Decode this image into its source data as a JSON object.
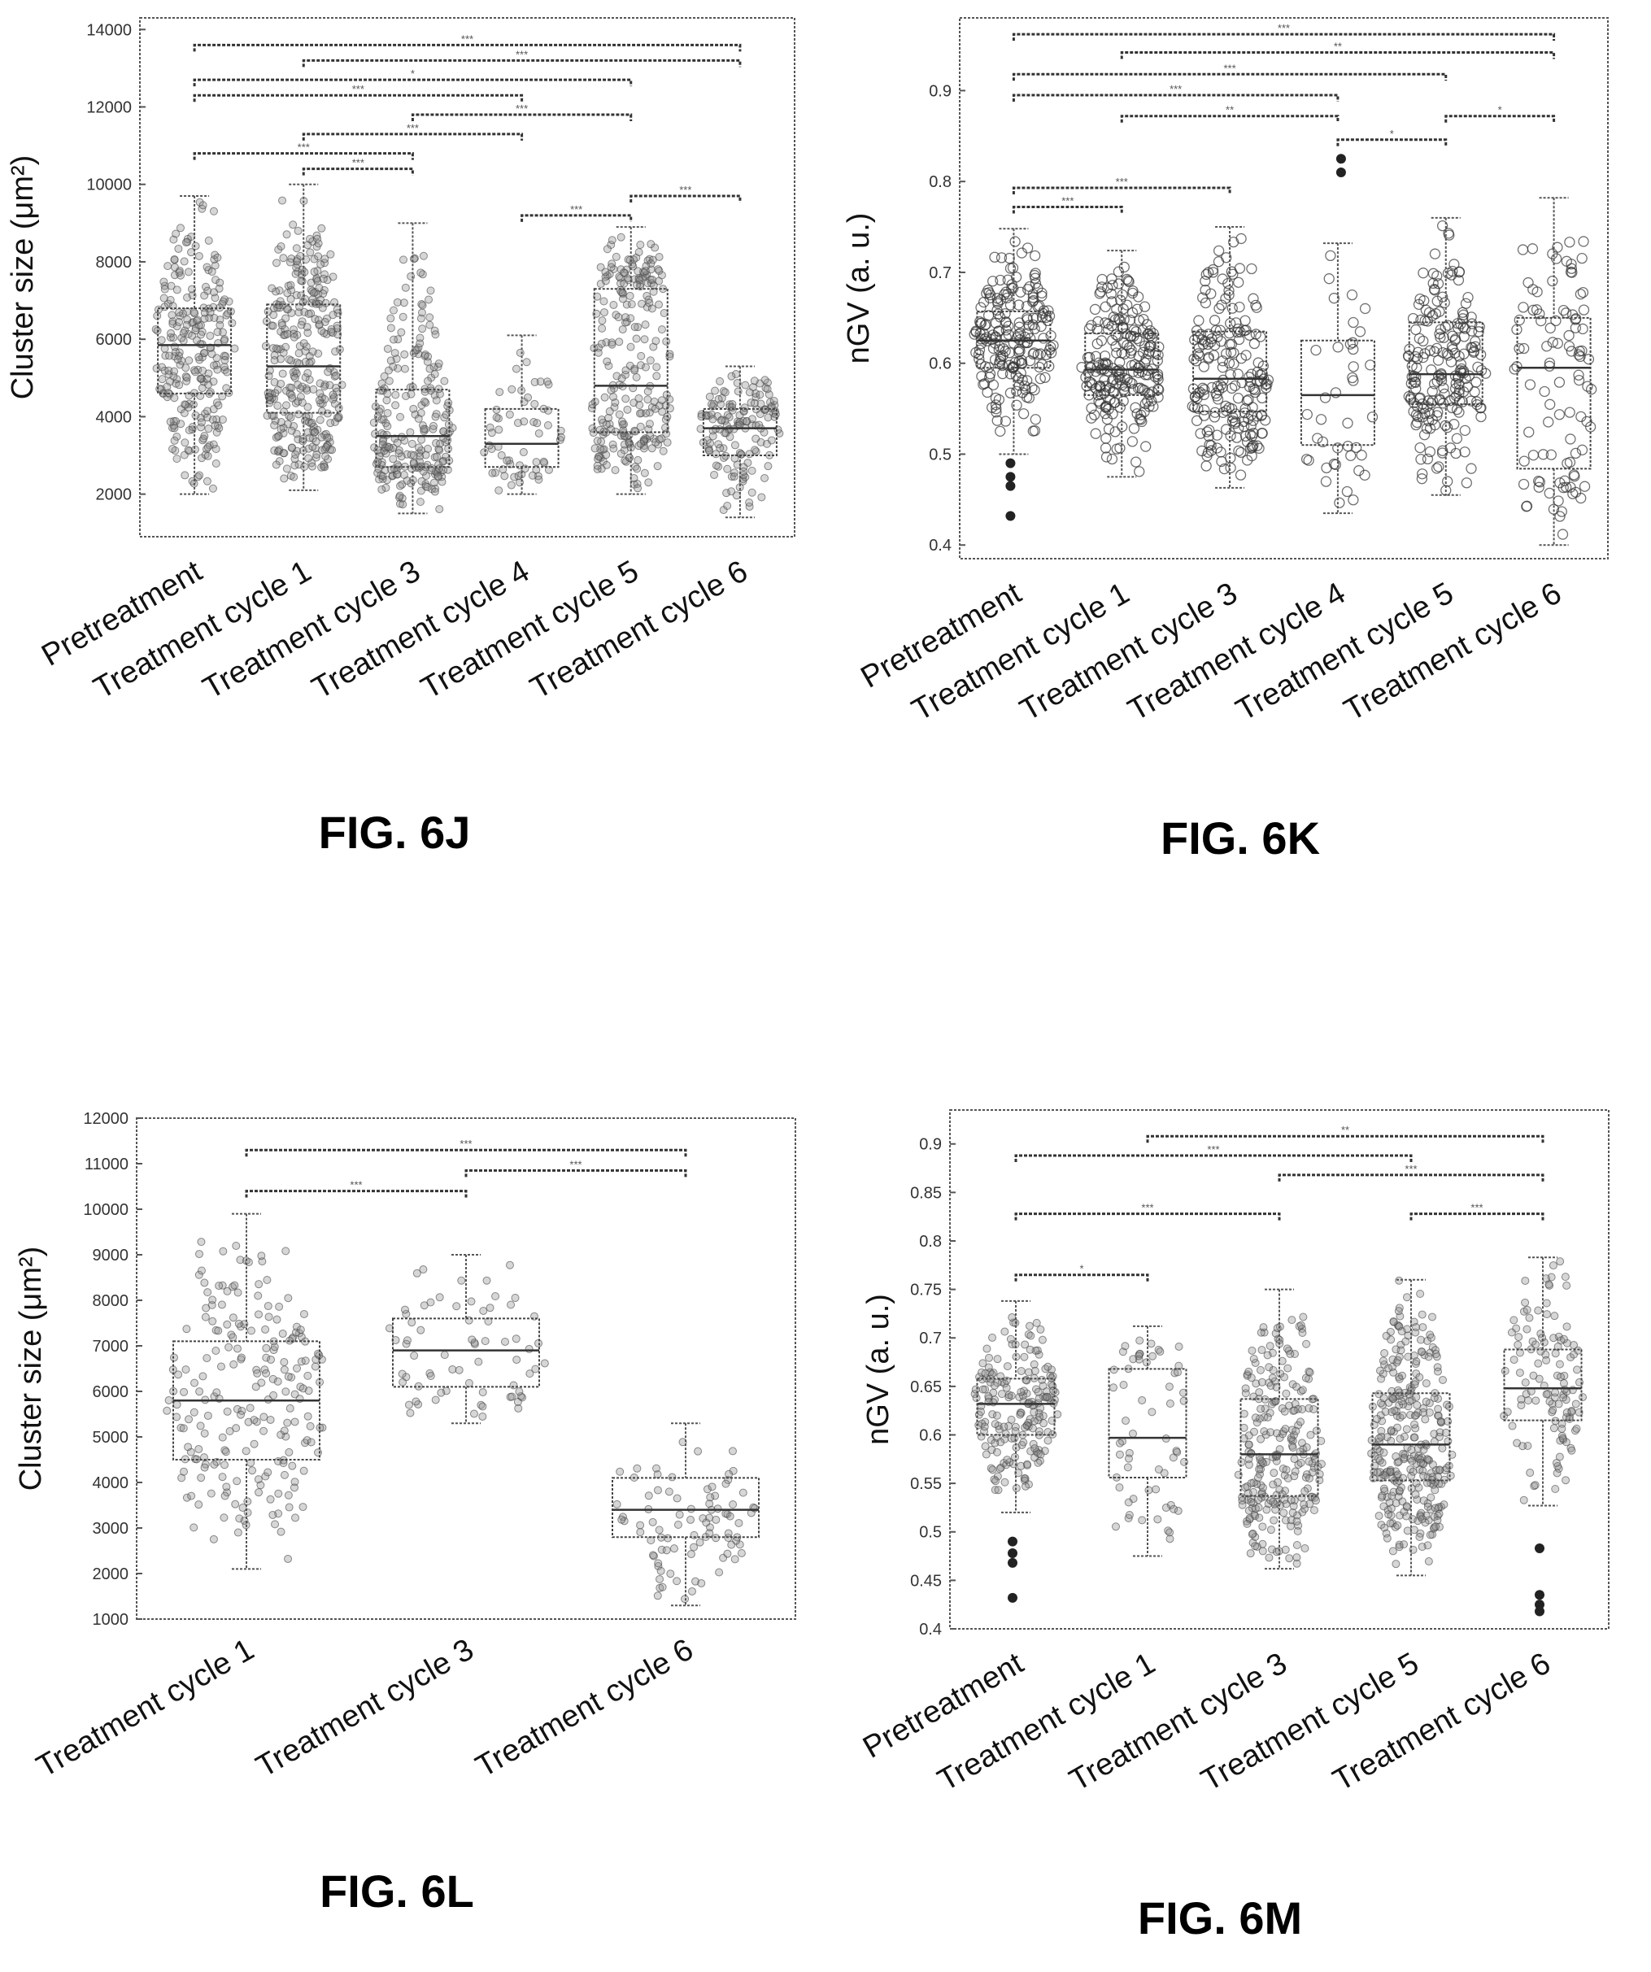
{
  "chart_data": [
    {
      "id": "6J",
      "type": "box",
      "figure_label": "FIG. 6J",
      "ylabel": "Cluster size (μm²)",
      "ylim": [
        900,
        14300
      ],
      "yticks": [
        2000,
        4000,
        6000,
        8000,
        10000,
        12000,
        14000
      ],
      "categories": [
        "Pretreatment",
        "Treatment cycle 1",
        "Treatment cycle 3",
        "Treatment cycle 4",
        "Treatment cycle 5",
        "Treatment cycle 6"
      ],
      "boxes": [
        {
          "min": 2000,
          "q1": 4600,
          "median": 5850,
          "q3": 6800,
          "max": 9700
        },
        {
          "min": 2100,
          "q1": 4100,
          "median": 5300,
          "q3": 6900,
          "max": 10000
        },
        {
          "min": 1500,
          "q1": 2700,
          "median": 3500,
          "q3": 4700,
          "max": 9000
        },
        {
          "min": 2000,
          "q1": 2700,
          "median": 3300,
          "q3": 4200,
          "max": 6100
        },
        {
          "min": 2000,
          "q1": 3600,
          "median": 4800,
          "q3": 7300,
          "max": 8900
        },
        {
          "min": 1400,
          "q1": 3000,
          "median": 3700,
          "q3": 4200,
          "max": 5300
        }
      ],
      "outliers": [],
      "n_points": [
        260,
        320,
        240,
        60,
        260,
        150
      ],
      "significance": [
        {
          "from": 0,
          "to": 5,
          "y": 13600,
          "label": "***"
        },
        {
          "from": 1,
          "to": 5,
          "y": 13200,
          "label": "***"
        },
        {
          "from": 0,
          "to": 4,
          "y": 12700,
          "label": "*"
        },
        {
          "from": 0,
          "to": 3,
          "y": 12300,
          "label": "***"
        },
        {
          "from": 2,
          "to": 4,
          "y": 11800,
          "label": "***"
        },
        {
          "from": 1,
          "to": 3,
          "y": 11300,
          "label": "***"
        },
        {
          "from": 0,
          "to": 2,
          "y": 10800,
          "label": "***"
        },
        {
          "from": 1,
          "to": 2,
          "y": 10400,
          "label": "***"
        },
        {
          "from": 3,
          "to": 4,
          "y": 9200,
          "label": "***"
        },
        {
          "from": 4,
          "to": 5,
          "y": 9700,
          "label": "***"
        }
      ]
    },
    {
      "id": "6K",
      "type": "box",
      "figure_label": "FIG. 6K",
      "ylabel": "nGV (a. u.)",
      "ylim": [
        0.385,
        0.98
      ],
      "yticks": [
        0.4,
        0.5,
        0.6,
        0.7,
        0.8,
        0.9
      ],
      "categories": [
        "Pretreatment",
        "Treatment cycle 1",
        "Treatment cycle 3",
        "Treatment cycle 4",
        "Treatment cycle 5",
        "Treatment cycle 6"
      ],
      "boxes": [
        {
          "min": 0.5,
          "q1": 0.595,
          "median": 0.625,
          "q3": 0.657,
          "max": 0.748
        },
        {
          "min": 0.475,
          "q1": 0.565,
          "median": 0.593,
          "q3": 0.633,
          "max": 0.724
        },
        {
          "min": 0.463,
          "q1": 0.547,
          "median": 0.583,
          "q3": 0.635,
          "max": 0.75
        },
        {
          "min": 0.435,
          "q1": 0.51,
          "median": 0.565,
          "q3": 0.625,
          "max": 0.732
        },
        {
          "min": 0.455,
          "q1": 0.555,
          "median": 0.588,
          "q3": 0.645,
          "max": 0.76
        },
        {
          "min": 0.4,
          "q1": 0.484,
          "median": 0.595,
          "q3": 0.65,
          "max": 0.782
        }
      ],
      "outliers": [
        {
          "cat": 0,
          "y": 0.475
        },
        {
          "cat": 0,
          "y": 0.465
        },
        {
          "cat": 0,
          "y": 0.49
        },
        {
          "cat": 0,
          "y": 0.432
        },
        {
          "cat": 3,
          "y": 0.81
        },
        {
          "cat": 3,
          "y": 0.825
        }
      ],
      "n_points": [
        200,
        220,
        200,
        40,
        200,
        100
      ],
      "hollow": true,
      "significance": [
        {
          "from": 0,
          "to": 5,
          "y": 0.962,
          "label": "***"
        },
        {
          "from": 1,
          "to": 5,
          "y": 0.942,
          "label": "**"
        },
        {
          "from": 0,
          "to": 4,
          "y": 0.918,
          "label": "***"
        },
        {
          "from": 0,
          "to": 3,
          "y": 0.895,
          "label": "***"
        },
        {
          "from": 1,
          "to": 3,
          "y": 0.872,
          "label": "**"
        },
        {
          "from": 4,
          "to": 5,
          "y": 0.872,
          "label": "*"
        },
        {
          "from": 3,
          "to": 4,
          "y": 0.846,
          "label": "*"
        },
        {
          "from": 0,
          "to": 2,
          "y": 0.793,
          "label": "***"
        },
        {
          "from": 0,
          "to": 1,
          "y": 0.772,
          "label": "***"
        }
      ]
    },
    {
      "id": "6L",
      "type": "box",
      "figure_label": "FIG. 6L",
      "ylabel": "Cluster size (μm²)",
      "ylim": [
        1000,
        12000
      ],
      "yticks": [
        1000,
        2000,
        3000,
        4000,
        5000,
        6000,
        7000,
        8000,
        9000,
        10000,
        11000,
        12000
      ],
      "categories": [
        "Treatment cycle 1",
        "Treatment cycle 3",
        "Treatment cycle 6"
      ],
      "boxes": [
        {
          "min": 2100,
          "q1": 4500,
          "median": 5800,
          "q3": 7100,
          "max": 9900
        },
        {
          "min": 5300,
          "q1": 6100,
          "median": 6900,
          "q3": 7600,
          "max": 9000
        },
        {
          "min": 1300,
          "q1": 2800,
          "median": 3400,
          "q3": 4100,
          "max": 5300
        }
      ],
      "outliers": [],
      "n_points": [
        220,
        70,
        90
      ],
      "significance": [
        {
          "from": 0,
          "to": 2,
          "y": 11300,
          "label": "***"
        },
        {
          "from": 1,
          "to": 2,
          "y": 10850,
          "label": "***"
        },
        {
          "from": 0,
          "to": 1,
          "y": 10400,
          "label": "***"
        }
      ]
    },
    {
      "id": "6M",
      "type": "box",
      "figure_label": "FIG. 6M",
      "ylabel": "nGV (a. u.)",
      "ylim": [
        0.4,
        0.935
      ],
      "yticks": [
        0.4,
        0.45,
        0.5,
        0.55,
        0.6,
        0.65,
        0.7,
        0.75,
        0.8,
        0.85,
        0.9
      ],
      "categories": [
        "Pretreatment",
        "Treatment cycle 1",
        "Treatment cycle 3",
        "Treatment cycle 5",
        "Treatment cycle 6"
      ],
      "boxes": [
        {
          "min": 0.52,
          "q1": 0.6,
          "median": 0.632,
          "q3": 0.658,
          "max": 0.738
        },
        {
          "min": 0.475,
          "q1": 0.556,
          "median": 0.597,
          "q3": 0.668,
          "max": 0.712
        },
        {
          "min": 0.462,
          "q1": 0.537,
          "median": 0.58,
          "q3": 0.637,
          "max": 0.75
        },
        {
          "min": 0.455,
          "q1": 0.553,
          "median": 0.59,
          "q3": 0.643,
          "max": 0.76
        },
        {
          "min": 0.527,
          "q1": 0.615,
          "median": 0.648,
          "q3": 0.688,
          "max": 0.783
        }
      ],
      "outliers": [
        {
          "cat": 0,
          "y": 0.49
        },
        {
          "cat": 0,
          "y": 0.478
        },
        {
          "cat": 0,
          "y": 0.468
        },
        {
          "cat": 0,
          "y": 0.432
        },
        {
          "cat": 4,
          "y": 0.483
        },
        {
          "cat": 4,
          "y": 0.435
        },
        {
          "cat": 4,
          "y": 0.425
        },
        {
          "cat": 4,
          "y": 0.418
        }
      ],
      "n_points": [
        200,
        60,
        260,
        320,
        120
      ],
      "significance": [
        {
          "from": 1,
          "to": 4,
          "y": 0.908,
          "label": "**"
        },
        {
          "from": 0,
          "to": 3,
          "y": 0.888,
          "label": "***"
        },
        {
          "from": 2,
          "to": 4,
          "y": 0.868,
          "label": "***"
        },
        {
          "from": 0,
          "to": 2,
          "y": 0.828,
          "label": "***"
        },
        {
          "from": 3,
          "to": 4,
          "y": 0.828,
          "label": "***"
        },
        {
          "from": 0,
          "to": 1,
          "y": 0.765,
          "label": "*"
        }
      ]
    }
  ]
}
